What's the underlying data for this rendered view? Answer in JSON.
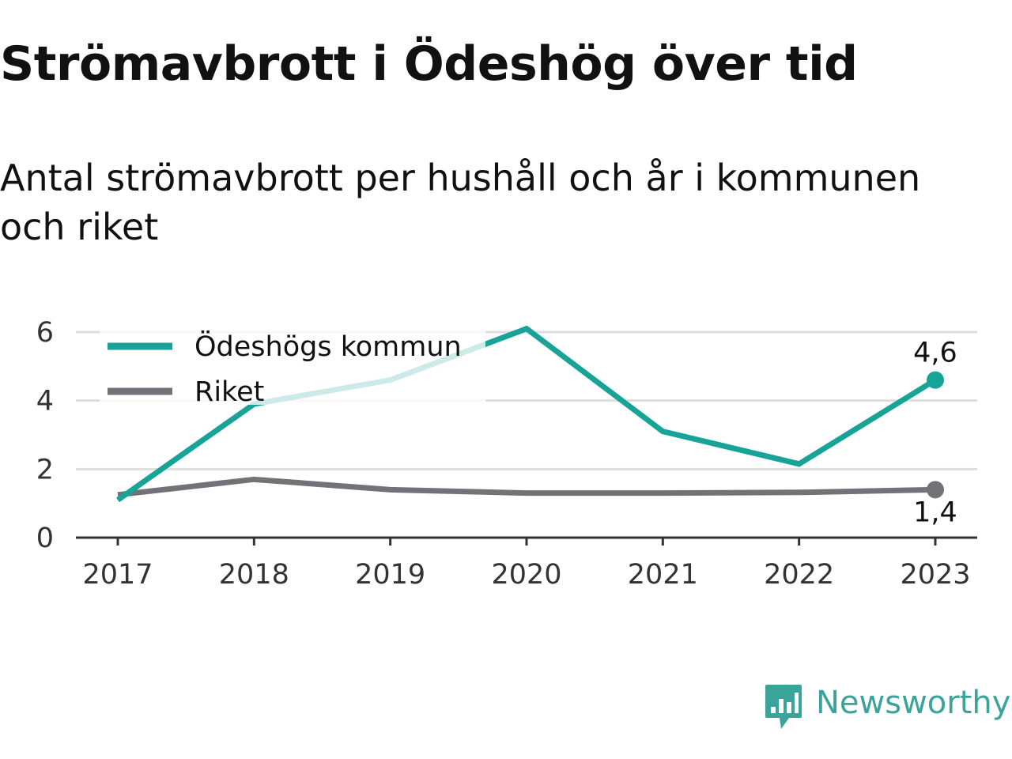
{
  "title": "Strömavbrott i Ödeshög över tid",
  "subtitle": "Antal strömavbrott per hushåll och år i kommunen och riket",
  "brand": {
    "name": "Newsworthy",
    "color": "#3aa39a"
  },
  "chart_data": {
    "type": "line",
    "x": [
      "2017",
      "2018",
      "2019",
      "2020",
      "2021",
      "2022",
      "2023"
    ],
    "ylim": [
      0,
      6
    ],
    "yticks": [
      0,
      2,
      4,
      6
    ],
    "grid": true,
    "legend_position": "top-left",
    "series": [
      {
        "name": "Ödeshögs kommun",
        "color": "#17a398",
        "values": [
          1.1,
          3.9,
          4.6,
          6.1,
          3.1,
          2.15,
          4.6
        ],
        "end_label": "4,6"
      },
      {
        "name": "Riket",
        "color": "#747278",
        "values": [
          1.25,
          1.7,
          1.4,
          1.3,
          1.3,
          1.32,
          1.4
        ],
        "end_label": "1,4"
      }
    ]
  }
}
